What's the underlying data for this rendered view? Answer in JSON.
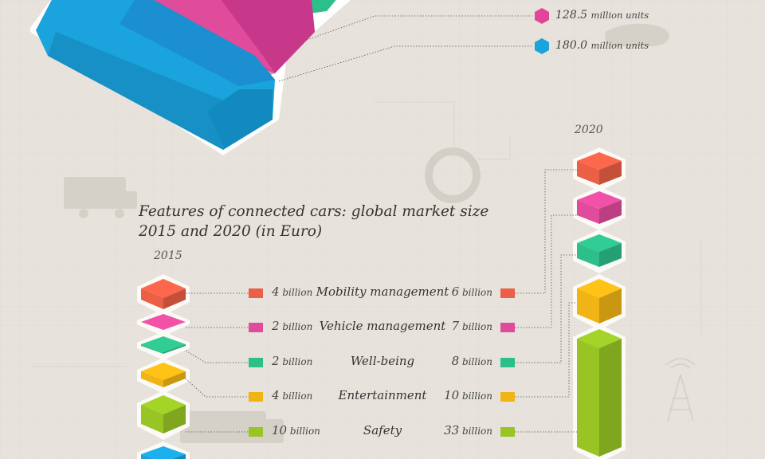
{
  "title": "Features of connected cars: global market size 2015 and 2020 (in Euro)",
  "year_left": "2015",
  "year_right": "2020",
  "units_legend": [
    {
      "value": "128.5",
      "unit": "million units",
      "color": "#e2449a"
    },
    {
      "value": "180.0",
      "unit": "million units",
      "color": "#1aa3dc"
    }
  ],
  "unit_billion": "billion",
  "categories": [
    {
      "name": "Mobility management",
      "v2015": "4",
      "v2020": "6",
      "color": "#ea5f45"
    },
    {
      "name": "Vehicle management",
      "v2015": "2",
      "v2020": "7",
      "color": "#e04b9c"
    },
    {
      "name": "Well-being",
      "v2015": "2",
      "v2020": "8",
      "color": "#2cbf8a"
    },
    {
      "name": "Entertainment",
      "v2015": "4",
      "v2020": "10",
      "color": "#f0b414"
    },
    {
      "name": "Safety",
      "v2015": "10",
      "v2020": "33",
      "color": "#98c424"
    }
  ]
}
